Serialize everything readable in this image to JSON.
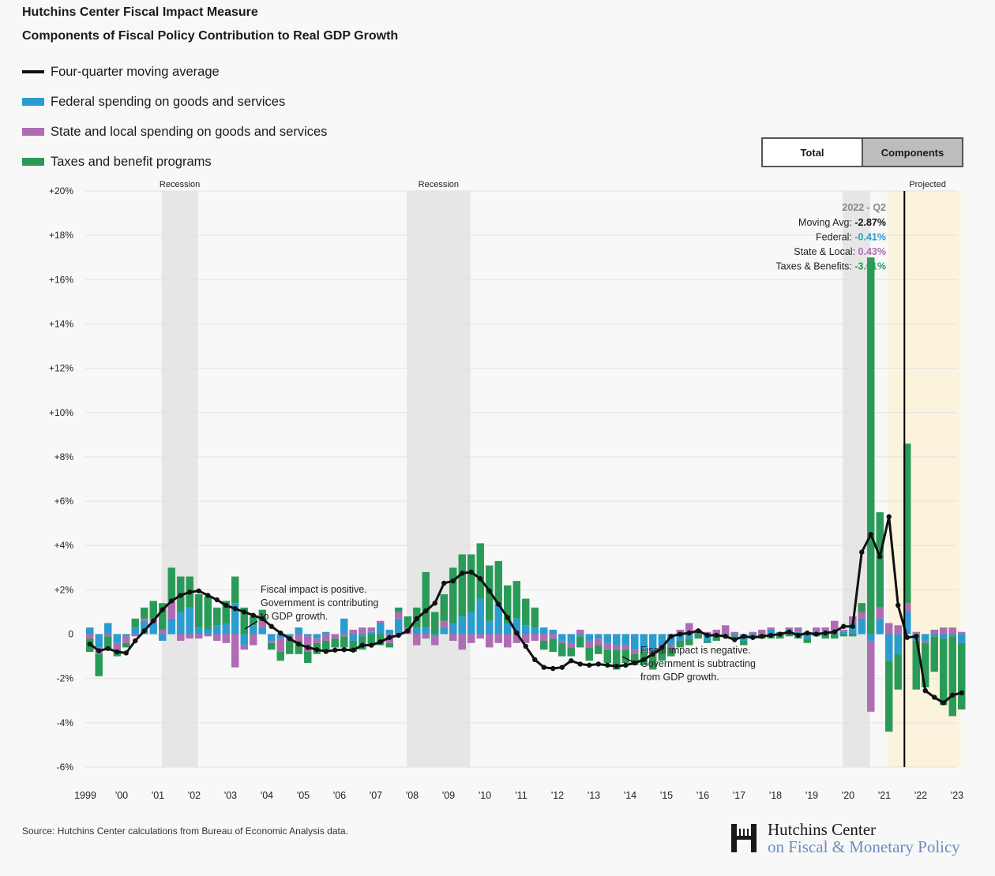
{
  "title": "Hutchins Center Fiscal Impact Measure",
  "subtitle": "Components of Fiscal Policy Contribution to Real GDP Growth",
  "legend": [
    {
      "label": "Four-quarter moving average",
      "color": "#111111",
      "kind": "line"
    },
    {
      "label": "Federal spending on goods and services",
      "color": "#2b9cd0",
      "kind": "box"
    },
    {
      "label": "State and local spending on goods and services",
      "color": "#b06cb3",
      "kind": "box"
    },
    {
      "label": "Taxes and benefit programs",
      "color": "#2a9a58",
      "kind": "box"
    }
  ],
  "toggle": {
    "total_label": "Total",
    "components_label": "Components"
  },
  "source": "Source: Hutchins Center calculations from Bureau of Economic Analysis data.",
  "logo": {
    "line1": "Hutchins Center",
    "line2": "on Fiscal & Monetary Policy",
    "letter": "H"
  },
  "tooltip": {
    "period": "2022 - Q2",
    "rows": [
      {
        "label": "Moving Avg:",
        "value": "-2.87%",
        "color": "#111111"
      },
      {
        "label": "Federal:",
        "value": "-0.41%",
        "color": "#2b9cd0"
      },
      {
        "label": "State & Local:",
        "value": "0.43%",
        "color": "#b06cb3"
      },
      {
        "label": "Taxes & Benefits:",
        "value": "-3.61%",
        "color": "#2a9a58"
      }
    ]
  },
  "annotations": {
    "positive": [
      "Fiscal impact is positive.",
      "Government is contributing",
      "to GDP growth."
    ],
    "negative": [
      "Fiscal impact is negative.",
      "Government is subtracting",
      "from GDP growth."
    ]
  },
  "chart_data": {
    "type": "bar",
    "stacked": true,
    "ylim": [
      -6,
      20
    ],
    "yticks": [
      -6,
      -4,
      -2,
      0,
      2,
      4,
      6,
      8,
      10,
      12,
      14,
      16,
      18,
      20
    ],
    "ytick_labels": [
      "-6%",
      "-4%",
      "-2%",
      "0",
      "+2%",
      "+4%",
      "+6%",
      "+8%",
      "+10%",
      "+12%",
      "+14%",
      "+16%",
      "+18%",
      "+20%"
    ],
    "xticks": [
      "1999",
      "'00",
      "'01",
      "'02",
      "'03",
      "'04",
      "'05",
      "'06",
      "'07",
      "'08",
      "'09",
      "'10",
      "'11",
      "'12",
      "'13",
      "'14",
      "'15",
      "'16",
      "'17",
      "'18",
      "'19",
      "'20",
      "'21",
      "'22",
      "'23"
    ],
    "start_year": 1999,
    "quarters_shown": 97,
    "recessions": [
      {
        "label": "Recession",
        "start": 2001.1,
        "end": 2002.1
      },
      {
        "label": "Recession",
        "start": 2007.85,
        "end": 2009.6
      },
      {
        "label": "",
        "start": 2019.85,
        "end": 2020.6
      }
    ],
    "projected": {
      "label": "Projected",
      "start": 2021.1,
      "end": 2023.1
    },
    "marker_x": 2021.5,
    "series": [
      {
        "name": "Federal spending on goods and services",
        "color": "#2b9cd0",
        "values": [
          0.3,
          -0.6,
          0.5,
          -0.4,
          -0.1,
          0.3,
          0.6,
          0.5,
          -0.3,
          0.7,
          1.0,
          1.2,
          0.3,
          0.2,
          0.4,
          0.5,
          1.4,
          -0.5,
          0.4,
          0.3,
          -0.3,
          -0.2,
          -0.1,
          0.3,
          -0.1,
          -0.2,
          0.1,
          0.0,
          0.7,
          -0.3,
          -0.1,
          0.1,
          0.5,
          0.2,
          0.7,
          0.0,
          0.3,
          0.3,
          -0.1,
          0.3,
          0.5,
          0.8,
          1.0,
          1.6,
          0.6,
          1.4,
          0.5,
          0.7,
          0.4,
          0.3,
          0.3,
          0.2,
          -0.3,
          -0.4,
          -0.1,
          -0.3,
          -0.2,
          -0.4,
          -0.5,
          -0.5,
          -0.7,
          -0.7,
          -0.8,
          -0.5,
          -0.5,
          -0.3,
          -0.2,
          0.1,
          -0.3,
          -0.1,
          0.0,
          -0.1,
          -0.3,
          -0.1,
          0.0,
          0.2,
          0.0,
          0.2,
          0.1,
          -0.2,
          0.1,
          0.1,
          0.1,
          0.1,
          0.5,
          0.7,
          -0.3,
          0.7,
          -1.2,
          -0.9,
          1.0,
          -0.3,
          -0.3,
          -0.1,
          -0.2,
          -0.1,
          -0.4
        ]
      },
      {
        "name": "State and local spending on goods and services",
        "color": "#b06cb3",
        "values": [
          -0.2,
          -0.3,
          -0.1,
          -0.3,
          -0.3,
          -0.1,
          0.1,
          0.2,
          0.2,
          0.8,
          -0.3,
          -0.2,
          -0.2,
          -0.1,
          -0.3,
          -0.4,
          -1.5,
          -0.2,
          -0.5,
          0.3,
          -0.1,
          -0.6,
          -0.2,
          -0.3,
          -0.7,
          -0.2,
          -0.3,
          -0.2,
          -0.1,
          0.2,
          0.3,
          0.2,
          0.1,
          -0.4,
          0.3,
          0.3,
          -0.5,
          -0.2,
          -0.4,
          0.3,
          -0.3,
          -0.7,
          -0.4,
          -0.2,
          -0.6,
          -0.4,
          -0.6,
          -0.4,
          -0.4,
          -0.3,
          -0.3,
          -0.2,
          -0.1,
          -0.2,
          0.2,
          -0.3,
          -0.3,
          -0.3,
          -0.2,
          -0.2,
          -0.2,
          -0.1,
          -0.2,
          -0.1,
          -0.1,
          0.2,
          0.5,
          0.1,
          0.1,
          0.2,
          0.4,
          0.1,
          0.0,
          0.1,
          0.2,
          0.1,
          0.1,
          0.1,
          0.2,
          0.1,
          0.2,
          0.2,
          0.5,
          0.1,
          0.3,
          0.3,
          -3.2,
          0.5,
          0.5,
          0.4,
          0.4,
          0.1,
          -0.1,
          0.2,
          0.3,
          0.3,
          0.1
        ]
      },
      {
        "name": "Taxes and benefit programs",
        "color": "#2a9a58",
        "values": [
          -0.6,
          -1.0,
          -0.6,
          -0.3,
          -0.2,
          0.4,
          0.5,
          0.8,
          1.2,
          1.5,
          1.6,
          1.4,
          1.5,
          1.5,
          0.8,
          1.0,
          1.2,
          1.2,
          0.4,
          0.5,
          -0.3,
          -0.4,
          -0.6,
          -0.6,
          -0.5,
          -0.5,
          -0.5,
          -0.4,
          -0.5,
          -0.5,
          -0.6,
          -0.5,
          -0.5,
          -0.2,
          0.2,
          0.5,
          0.9,
          2.5,
          1.0,
          1.2,
          2.5,
          2.8,
          2.6,
          2.5,
          2.5,
          1.9,
          1.7,
          1.7,
          1.2,
          0.9,
          -0.4,
          -0.6,
          -0.6,
          -0.4,
          -0.5,
          -0.6,
          -0.4,
          -0.6,
          -0.9,
          -0.6,
          -0.5,
          -0.6,
          -0.6,
          -0.6,
          -0.4,
          -0.3,
          -0.3,
          -0.2,
          -0.1,
          -0.2,
          -0.1,
          -0.1,
          -0.2,
          -0.1,
          -0.2,
          -0.2,
          -0.2,
          -0.1,
          -0.2,
          -0.2,
          -0.1,
          -0.2,
          -0.2,
          -0.1,
          -0.1,
          0.4,
          17.0,
          4.3,
          -3.2,
          -1.6,
          7.2,
          -2.2,
          -2.0,
          -1.6,
          -3.0,
          -3.6,
          -3.0
        ]
      }
    ],
    "moving_average": [
      -0.45,
      -0.75,
      -0.65,
      -0.8,
      -0.85,
      -0.3,
      0.15,
      0.6,
      1.1,
      1.5,
      1.75,
      1.9,
      1.95,
      1.75,
      1.55,
      1.3,
      1.15,
      1.0,
      0.85,
      0.7,
      0.35,
      0.05,
      -0.2,
      -0.45,
      -0.6,
      -0.7,
      -0.78,
      -0.72,
      -0.7,
      -0.72,
      -0.5,
      -0.5,
      -0.35,
      -0.15,
      -0.05,
      0.15,
      0.7,
      1.05,
      1.4,
      2.3,
      2.4,
      2.75,
      2.8,
      2.5,
      1.95,
      1.35,
      0.75,
      0.05,
      -0.55,
      -1.15,
      -1.5,
      -1.55,
      -1.5,
      -1.2,
      -1.35,
      -1.4,
      -1.35,
      -1.4,
      -1.45,
      -1.4,
      -1.3,
      -1.15,
      -0.9,
      -0.6,
      -0.1,
      0.0,
      0.05,
      0.15,
      -0.05,
      -0.05,
      -0.1,
      -0.25,
      -0.1,
      -0.15,
      -0.1,
      -0.05,
      0.0,
      0.1,
      -0.05,
      0.05,
      0.0,
      0.05,
      0.1,
      0.35,
      0.35,
      3.7,
      4.5,
      3.5,
      5.3,
      1.3,
      -0.15,
      -0.1,
      -2.55,
      -2.85,
      -3.1,
      -2.75,
      -2.65
    ]
  }
}
